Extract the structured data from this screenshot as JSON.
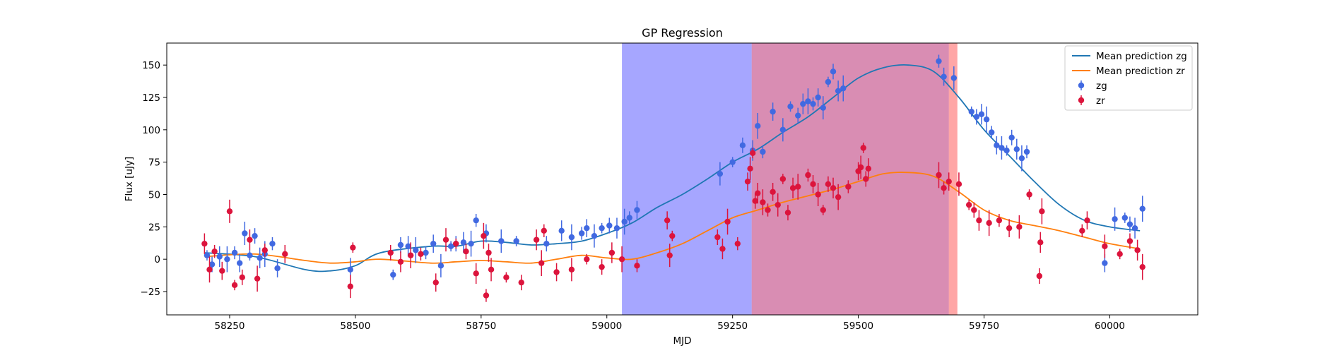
{
  "chart_data": {
    "type": "scatter",
    "title": "GP Regression",
    "xlabel": "MJD",
    "ylabel": "Flux [uJy]",
    "xlim": [
      58125,
      60175
    ],
    "ylim": [
      -43,
      167
    ],
    "xticks": [
      58250,
      58500,
      58750,
      59000,
      59250,
      59500,
      59750,
      60000
    ],
    "yticks": [
      -25,
      0,
      25,
      50,
      75,
      100,
      125,
      150
    ],
    "legend_position": "upper right",
    "grid": false,
    "spans": [
      {
        "x0": 59030,
        "x1": 59288,
        "color": "#0000ff",
        "alpha": 0.35
      },
      {
        "x0": 59288,
        "x1": 59680,
        "color": "#ff0000",
        "alpha": 0.35
      },
      {
        "x0": 59288,
        "x1": 59680,
        "color": "#0000ff",
        "alpha": 0.15
      },
      {
        "x0": 59680,
        "x1": 59697,
        "color": "#ff0000",
        "alpha": 0.35
      }
    ],
    "lines": [
      {
        "name": "Mean prediction zg",
        "color": "#1f77b4",
        "x": [
          58200,
          58300,
          58400,
          58450,
          58500,
          58550,
          58650,
          58700,
          58750,
          58800,
          58850,
          58900,
          58950,
          59000,
          59050,
          59100,
          59150,
          59200,
          59250,
          59300,
          59350,
          59400,
          59450,
          59500,
          59550,
          59600,
          59650,
          59700,
          59750,
          59800,
          59850,
          59900,
          59950,
          60000,
          60060
        ],
        "y": [
          5,
          2,
          -8,
          -9,
          -5,
          5,
          10,
          10,
          14,
          13,
          11,
          12,
          14,
          20,
          28,
          40,
          50,
          62,
          75,
          85,
          98,
          110,
          125,
          140,
          148,
          150,
          145,
          125,
          100,
          80,
          60,
          42,
          30,
          25,
          22
        ]
      },
      {
        "name": "Mean prediction zr",
        "color": "#ff7f0e",
        "x": [
          58200,
          58300,
          58400,
          58450,
          58500,
          58550,
          58650,
          58700,
          58750,
          58800,
          58850,
          58900,
          58950,
          59000,
          59050,
          59100,
          59150,
          59200,
          59250,
          59300,
          59350,
          59400,
          59450,
          59500,
          59550,
          59600,
          59650,
          59700,
          59750,
          59800,
          59850,
          59900,
          59950,
          60000,
          60060
        ],
        "y": [
          2,
          4,
          -1,
          -3,
          -2,
          0,
          -3,
          -2,
          -1,
          -2,
          -3,
          0,
          3,
          1,
          0,
          5,
          12,
          22,
          32,
          38,
          44,
          49,
          54,
          60,
          66,
          67,
          64,
          52,
          38,
          30,
          26,
          22,
          17,
          12,
          8
        ]
      }
    ],
    "series": [
      {
        "name": "zg",
        "color": "#4169e1",
        "x": [
          58205,
          58215,
          58230,
          58245,
          58260,
          58270,
          58280,
          58290,
          58300,
          58310,
          58320,
          58335,
          58345,
          58490,
          58575,
          58590,
          58605,
          58620,
          58640,
          58655,
          58670,
          58690,
          58700,
          58715,
          58730,
          58740,
          58760,
          58790,
          58820,
          58880,
          58910,
          58930,
          58950,
          58960,
          58975,
          58990,
          59005,
          59020,
          59035,
          59045,
          59060,
          59225,
          59250,
          59270,
          59290,
          59300,
          59310,
          59330,
          59350,
          59365,
          59380,
          59390,
          59400,
          59410,
          59420,
          59430,
          59440,
          59450,
          59460,
          59470,
          59660,
          59670,
          59690,
          59725,
          59735,
          59745,
          59755,
          59765,
          59775,
          59785,
          59795,
          59805,
          59815,
          59825,
          59835,
          59990,
          60010,
          60030,
          60040,
          60050,
          60065
        ],
        "y": [
          3,
          -4,
          2,
          0,
          5,
          -3,
          20,
          3,
          18,
          1,
          4,
          12,
          -7,
          -8,
          -12,
          11,
          10,
          7,
          5,
          12,
          -5,
          10,
          12,
          13,
          12,
          30,
          20,
          14,
          14,
          12,
          22,
          17,
          20,
          24,
          18,
          24,
          26,
          24,
          29,
          32,
          38,
          66,
          75,
          88,
          84,
          103,
          83,
          114,
          100,
          118,
          111,
          120,
          122,
          120,
          125,
          117,
          137,
          145,
          130,
          132,
          153,
          141,
          140,
          114,
          110,
          112,
          108,
          98,
          88,
          86,
          84,
          94,
          85,
          78,
          83,
          -3,
          31,
          32,
          27,
          24,
          39
        ]
      },
      {
        "name": "zr",
        "color": "#dc143c",
        "x": [
          58200,
          58210,
          58220,
          58235,
          58250,
          58260,
          58275,
          58290,
          58305,
          58320,
          58360,
          58490,
          58495,
          58570,
          58590,
          58610,
          58630,
          58660,
          58680,
          58700,
          58720,
          58740,
          58755,
          58760,
          58765,
          58770,
          58800,
          58830,
          58860,
          58870,
          58875,
          58900,
          58930,
          58960,
          58990,
          59010,
          59030,
          59060,
          59120,
          59125,
          59130,
          59220,
          59230,
          59240,
          59260,
          59280,
          59285,
          59290,
          59295,
          59300,
          59310,
          59320,
          59330,
          59340,
          59350,
          59360,
          59370,
          59380,
          59400,
          59410,
          59420,
          59430,
          59440,
          59450,
          59460,
          59480,
          59500,
          59505,
          59510,
          59515,
          59520,
          59660,
          59670,
          59680,
          59700,
          59720,
          59730,
          59740,
          59760,
          59780,
          59800,
          59820,
          59840,
          59860,
          59862,
          59865,
          59945,
          59955,
          59990,
          60020,
          60040,
          60055,
          60065
        ],
        "y": [
          12,
          -8,
          6,
          -9,
          37,
          -20,
          -14,
          15,
          -15,
          7,
          4,
          -21,
          9,
          5,
          -2,
          3,
          4,
          -18,
          15,
          12,
          6,
          -11,
          18,
          -28,
          5,
          -8,
          -14,
          -18,
          15,
          -3,
          22,
          -10,
          -8,
          0,
          -6,
          5,
          0,
          -5,
          30,
          3,
          18,
          17,
          8,
          29,
          12,
          60,
          70,
          82,
          45,
          51,
          44,
          38,
          52,
          42,
          62,
          36,
          55,
          56,
          65,
          58,
          50,
          38,
          58,
          55,
          48,
          56,
          68,
          71,
          86,
          62,
          70,
          65,
          55,
          60,
          58,
          42,
          38,
          30,
          28,
          30,
          24,
          25,
          50,
          -13,
          13,
          37,
          22,
          30,
          10,
          4,
          14,
          7,
          -6
        ]
      }
    ]
  }
}
